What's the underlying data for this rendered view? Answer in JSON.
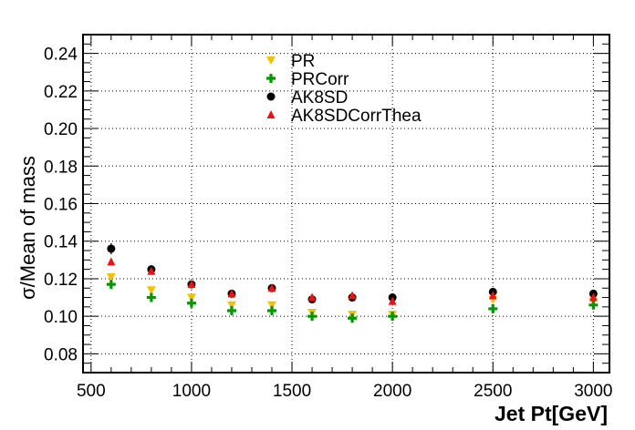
{
  "chart_data": {
    "type": "scatter",
    "xlabel": "Jet Pt[GeV]",
    "ylabel": "σ/Mean of mass",
    "xlim": [
      460,
      3080
    ],
    "ylim": [
      0.07,
      0.25
    ],
    "xticks": [
      500,
      1000,
      1500,
      2000,
      2500,
      3000
    ],
    "yticks": [
      0.08,
      0.1,
      0.12,
      0.14,
      0.16,
      0.18,
      0.2,
      0.22,
      0.24
    ],
    "ytick_labels": [
      "0.08",
      "0.10",
      "0.12",
      "0.14",
      "0.16",
      "0.18",
      "0.20",
      "0.22",
      "0.24"
    ],
    "grid": true,
    "legend_position": "top-center",
    "x": [
      600,
      800,
      1000,
      1200,
      1400,
      1600,
      1800,
      2000,
      2500,
      3000
    ],
    "series": [
      {
        "name": "PR",
        "marker": "triangle-down",
        "color": "#f2c200",
        "values": [
          0.121,
          0.114,
          0.11,
          0.106,
          0.106,
          0.102,
          0.101,
          0.101,
          0.109,
          0.108
        ]
      },
      {
        "name": "PRCorr",
        "marker": "cross",
        "color": "#009900",
        "values": [
          0.117,
          0.11,
          0.107,
          0.103,
          0.103,
          0.1,
          0.099,
          0.1,
          0.104,
          0.106
        ]
      },
      {
        "name": "AK8SD",
        "marker": "circle",
        "color": "#000000",
        "values": [
          0.136,
          0.125,
          0.117,
          0.112,
          0.115,
          0.109,
          0.11,
          0.11,
          0.113,
          0.112
        ]
      },
      {
        "name": "AK8SDCorrThea",
        "marker": "triangle-up",
        "color": "#ee1111",
        "values": [
          0.129,
          0.124,
          0.117,
          0.112,
          0.115,
          0.11,
          0.111,
          0.108,
          0.111,
          0.11
        ]
      }
    ],
    "error_bars": {
      "AK8SD": [
        0.003,
        0.002,
        0.002,
        0.002,
        0.002,
        0.002,
        0.002,
        0.002,
        0.002,
        0.002
      ]
    }
  }
}
